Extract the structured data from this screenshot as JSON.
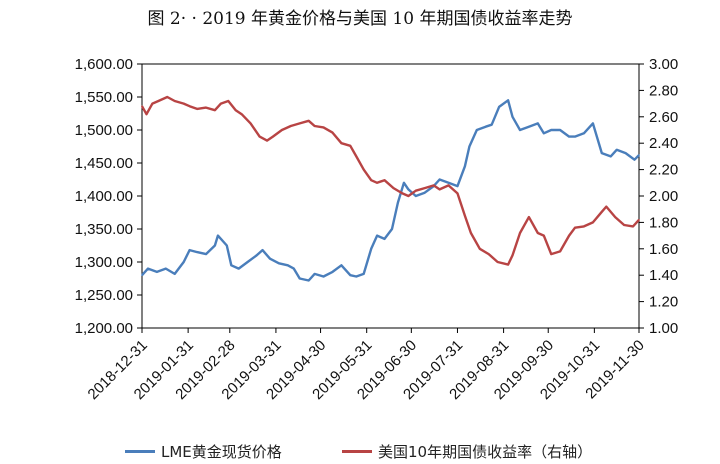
{
  "title": "图 2· · 2019 年黄金价格与美国 10 年期国债收益率走势",
  "chart_data": {
    "type": "line",
    "title": "图 2· · 2019 年黄金价格与美国 10 年期国债收益率走势",
    "xlabel": "",
    "ylabel": "",
    "x_tick_labels": [
      "2018-12-31",
      "2019-01-31",
      "2019-02-28",
      "2019-03-31",
      "2019-04-30",
      "2019-05-31",
      "2019-06-30",
      "2019-07-31",
      "2019-08-31",
      "2019-09-30",
      "2019-10-31",
      "2019-11-30"
    ],
    "y_left": {
      "ylim": [
        1200,
        1600
      ],
      "tick_labels": [
        "1,200.00",
        "1,250.00",
        "1,300.00",
        "1,350.00",
        "1,400.00",
        "1,450.00",
        "1,500.00",
        "1,550.00",
        "1,600.00"
      ],
      "tick_values": [
        1200,
        1250,
        1300,
        1350,
        1400,
        1450,
        1500,
        1550,
        1600
      ]
    },
    "y_right": {
      "ylim": [
        1.0,
        3.0
      ],
      "tick_labels": [
        "1.00",
        "1.20",
        "1.40",
        "1.60",
        "1.80",
        "2.00",
        "2.20",
        "2.40",
        "2.60",
        "2.80",
        "3.00"
      ],
      "tick_values": [
        1.0,
        1.2,
        1.4,
        1.6,
        1.8,
        2.0,
        2.2,
        2.4,
        2.6,
        2.8,
        3.0
      ]
    },
    "grid": false,
    "legend_position": "bottom",
    "series": [
      {
        "name": "LME黄金现货价格",
        "axis": "left",
        "color": "#4a7ebb",
        "dates": [
          "2018-12-31",
          "2019-01-04",
          "2019-01-10",
          "2019-01-16",
          "2019-01-22",
          "2019-01-28",
          "2019-02-01",
          "2019-02-06",
          "2019-02-12",
          "2019-02-18",
          "2019-02-20",
          "2019-02-26",
          "2019-03-01",
          "2019-03-06",
          "2019-03-12",
          "2019-03-18",
          "2019-03-22",
          "2019-03-27",
          "2019-04-02",
          "2019-04-08",
          "2019-04-12",
          "2019-04-16",
          "2019-04-22",
          "2019-04-26",
          "2019-05-02",
          "2019-05-08",
          "2019-05-14",
          "2019-05-20",
          "2019-05-24",
          "2019-05-29",
          "2019-06-03",
          "2019-06-07",
          "2019-06-12",
          "2019-06-17",
          "2019-06-21",
          "2019-06-25",
          "2019-06-28",
          "2019-07-03",
          "2019-07-09",
          "2019-07-15",
          "2019-07-19",
          "2019-07-25",
          "2019-07-31",
          "2019-08-05",
          "2019-08-08",
          "2019-08-13",
          "2019-08-19",
          "2019-08-23",
          "2019-08-28",
          "2019-09-03",
          "2019-09-06",
          "2019-09-11",
          "2019-09-17",
          "2019-09-23",
          "2019-09-27",
          "2019-10-02",
          "2019-10-08",
          "2019-10-14",
          "2019-10-18",
          "2019-10-24",
          "2019-10-30",
          "2019-11-05",
          "2019-11-11",
          "2019-11-15",
          "2019-11-21",
          "2019-11-27",
          "2019-11-30"
        ],
        "values": [
          1280,
          1290,
          1285,
          1290,
          1282,
          1300,
          1318,
          1315,
          1312,
          1325,
          1340,
          1325,
          1295,
          1290,
          1300,
          1310,
          1318,
          1305,
          1298,
          1295,
          1290,
          1275,
          1272,
          1282,
          1278,
          1285,
          1295,
          1280,
          1278,
          1282,
          1320,
          1340,
          1335,
          1350,
          1390,
          1420,
          1410,
          1400,
          1405,
          1415,
          1425,
          1420,
          1415,
          1445,
          1475,
          1500,
          1505,
          1508,
          1535,
          1545,
          1520,
          1500,
          1505,
          1510,
          1495,
          1500,
          1500,
          1490,
          1490,
          1495,
          1510,
          1465,
          1460,
          1470,
          1465,
          1455,
          1462
        ]
      },
      {
        "name": "美国10年期国债收益率（右轴）",
        "axis": "right",
        "color": "#b84444",
        "dates": [
          "2018-12-31",
          "2019-01-03",
          "2019-01-07",
          "2019-01-11",
          "2019-01-17",
          "2019-01-22",
          "2019-01-28",
          "2019-02-01",
          "2019-02-06",
          "2019-02-12",
          "2019-02-18",
          "2019-02-22",
          "2019-02-27",
          "2019-03-04",
          "2019-03-08",
          "2019-03-14",
          "2019-03-20",
          "2019-03-25",
          "2019-03-29",
          "2019-04-04",
          "2019-04-10",
          "2019-04-16",
          "2019-04-22",
          "2019-04-26",
          "2019-05-02",
          "2019-05-08",
          "2019-05-14",
          "2019-05-20",
          "2019-05-24",
          "2019-05-29",
          "2019-06-03",
          "2019-06-07",
          "2019-06-12",
          "2019-06-18",
          "2019-06-24",
          "2019-06-28",
          "2019-07-03",
          "2019-07-09",
          "2019-07-15",
          "2019-07-19",
          "2019-07-25",
          "2019-07-31",
          "2019-08-05",
          "2019-08-09",
          "2019-08-15",
          "2019-08-21",
          "2019-08-27",
          "2019-09-03",
          "2019-09-06",
          "2019-09-11",
          "2019-09-17",
          "2019-09-23",
          "2019-09-27",
          "2019-10-02",
          "2019-10-08",
          "2019-10-14",
          "2019-10-18",
          "2019-10-24",
          "2019-10-30",
          "2019-11-05",
          "2019-11-08",
          "2019-11-14",
          "2019-11-20",
          "2019-11-26",
          "2019-11-30"
        ],
        "values": [
          2.68,
          2.62,
          2.7,
          2.72,
          2.75,
          2.72,
          2.7,
          2.68,
          2.66,
          2.67,
          2.65,
          2.7,
          2.72,
          2.65,
          2.62,
          2.55,
          2.45,
          2.42,
          2.45,
          2.5,
          2.53,
          2.55,
          2.57,
          2.53,
          2.52,
          2.48,
          2.4,
          2.38,
          2.3,
          2.2,
          2.12,
          2.1,
          2.12,
          2.06,
          2.02,
          2.0,
          2.04,
          2.06,
          2.08,
          2.05,
          2.08,
          2.02,
          1.85,
          1.72,
          1.6,
          1.56,
          1.5,
          1.48,
          1.55,
          1.72,
          1.84,
          1.72,
          1.7,
          1.56,
          1.58,
          1.7,
          1.76,
          1.77,
          1.8,
          1.88,
          1.92,
          1.84,
          1.78,
          1.77,
          1.82
        ]
      }
    ]
  }
}
